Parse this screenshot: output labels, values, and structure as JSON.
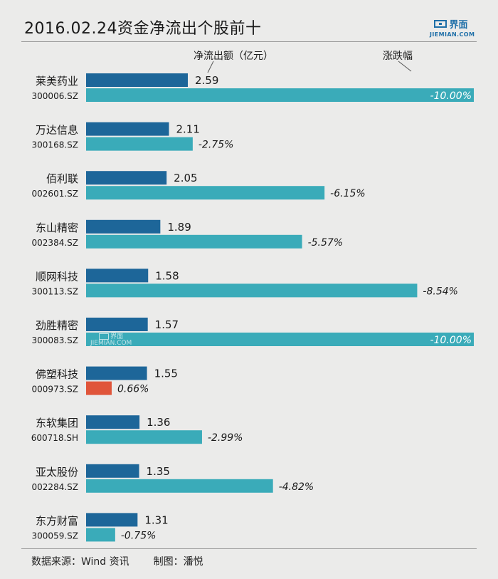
{
  "title": "2016.02.24资金净流出个股前十",
  "logo": {
    "text": "界面",
    "sub": "JIEMIAN.COM"
  },
  "legend": {
    "net_outflow": "净流出额（亿元）",
    "change": "涨跌幅"
  },
  "footer": {
    "source": "数据来源：Wind 资讯",
    "author": "制图：潘悦"
  },
  "colors": {
    "flow": "#1d6699",
    "down": "#3aabb9",
    "up": "#e0553a",
    "background": "#ebebea"
  },
  "chart_data": {
    "type": "bar",
    "title": "2016.02.24资金净流出个股前十",
    "categories": [
      "莱美药业",
      "万达信息",
      "佰利联",
      "东山精密",
      "顺网科技",
      "劲胜精密",
      "佛塑科技",
      "东软集团",
      "亚太股份",
      "东方财富"
    ],
    "codes": [
      "300006.SZ",
      "300168.SZ",
      "002601.SZ",
      "002384.SZ",
      "300113.SZ",
      "300083.SZ",
      "000973.SZ",
      "600718.SH",
      "002284.SZ",
      "300059.SZ"
    ],
    "series": [
      {
        "name": "净流出额（亿元）",
        "values": [
          2.59,
          2.11,
          2.05,
          1.89,
          1.58,
          1.57,
          1.55,
          1.36,
          1.35,
          1.31
        ],
        "labels": [
          "2.59",
          "2.11",
          "2.05",
          "1.89",
          "1.58",
          "1.57",
          "1.55",
          "1.36",
          "1.35",
          "1.31"
        ]
      },
      {
        "name": "涨跌幅",
        "values": [
          -10.0,
          -2.75,
          -6.15,
          -5.57,
          -8.54,
          -10.0,
          0.66,
          -2.99,
          -4.82,
          -0.75
        ],
        "labels": [
          "-10.00%",
          "-2.75%",
          "-6.15%",
          "-5.57%",
          "-8.54%",
          "-10.00%",
          "0.66%",
          "-2.99%",
          "-4.82%",
          "-0.75%"
        ]
      }
    ]
  }
}
